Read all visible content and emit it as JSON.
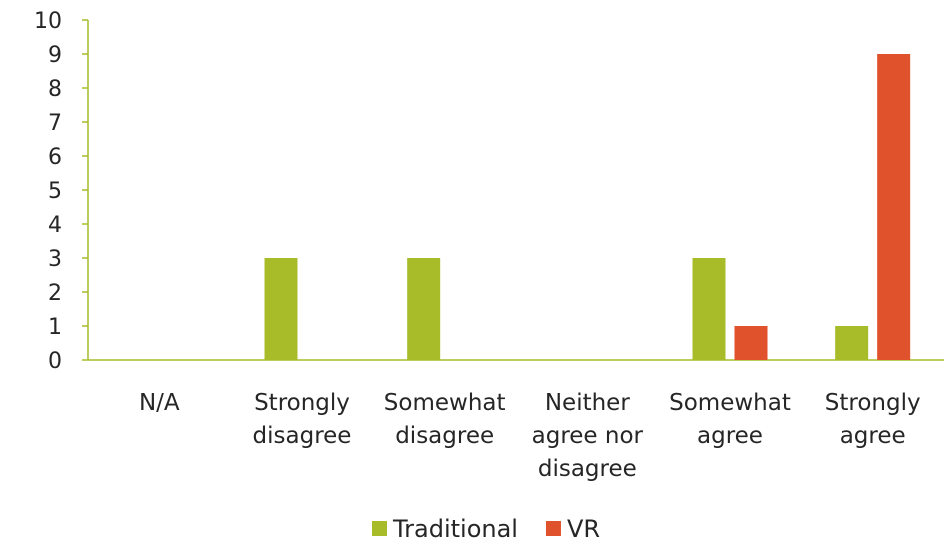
{
  "chart_data": {
    "type": "bar",
    "title": "",
    "xlabel": "",
    "ylabel": "",
    "categories": [
      [
        "N/A"
      ],
      [
        "Strongly",
        "disagree"
      ],
      [
        "Somewhat",
        "disagree"
      ],
      [
        "Neither",
        "agree nor",
        "disagree"
      ],
      [
        "Somewhat",
        "agree"
      ],
      [
        "Strongly",
        "agree"
      ]
    ],
    "series": [
      {
        "name": "Traditional",
        "color": "#a8bc2a",
        "values": [
          0,
          3,
          3,
          0,
          3,
          1
        ]
      },
      {
        "name": "VR",
        "color": "#e0522b",
        "values": [
          0,
          0,
          0,
          0,
          1,
          9
        ]
      }
    ],
    "ylim": [
      0,
      10
    ],
    "yticks": [
      0,
      1,
      2,
      3,
      4,
      5,
      6,
      7,
      8,
      9,
      10
    ],
    "grid": false,
    "axis_color": "#a8bc2a",
    "legend_position": "bottom"
  }
}
